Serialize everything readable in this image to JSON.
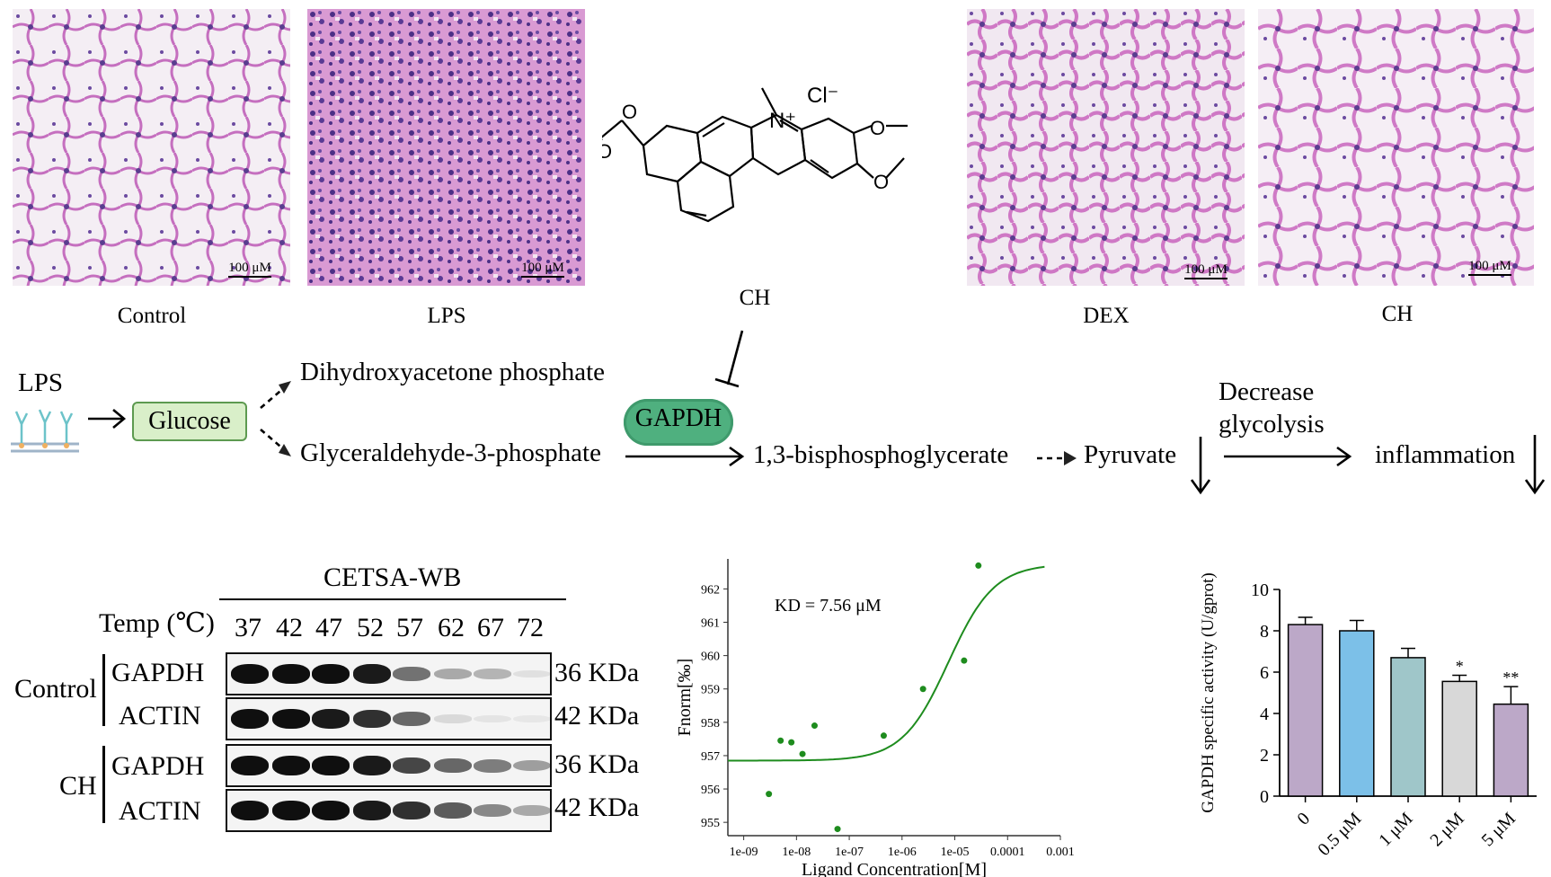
{
  "histology": {
    "scale_label": "100 μM",
    "panels": [
      {
        "caption": "Control"
      },
      {
        "caption": "LPS"
      },
      {
        "caption": "DEX"
      },
      {
        "caption": "CH"
      }
    ]
  },
  "structure": {
    "caption": "CH",
    "atoms": {
      "n_plus": "N⁺",
      "cl": "Cl⁻",
      "o1": "O",
      "o2": "O",
      "o3": "O",
      "o4": "O"
    }
  },
  "pathway": {
    "lps": "LPS",
    "glucose": "Glucose",
    "dhap": "Dihydroxyacetone phosphate",
    "g3p": "Glyceraldehyde-3-phosphate",
    "gapdh": "GAPDH",
    "bpg": "1,3-bisphosphoglycerate",
    "pyruvate": "Pyruvate",
    "decrease_line1": "Decrease",
    "decrease_line2": "glycolysis",
    "inflammation": "inflammation"
  },
  "cetsa": {
    "title": "CETSA-WB",
    "temp_label": "Temp (℃)",
    "temps": [
      "37",
      "42",
      "47",
      "52",
      "57",
      "62",
      "67",
      "72"
    ],
    "groups": [
      {
        "name": "Control",
        "rows": [
          {
            "protein": "GAPDH",
            "kda": "36 KDa",
            "intensity": [
              1.0,
              1.0,
              1.0,
              0.95,
              0.55,
              0.3,
              0.25,
              0.05
            ]
          },
          {
            "protein": "ACTIN",
            "kda": "42 KDa",
            "intensity": [
              1.0,
              1.0,
              0.95,
              0.85,
              0.6,
              0.08,
              0.03,
              0.02
            ]
          }
        ]
      },
      {
        "name": "CH",
        "rows": [
          {
            "protein": "GAPDH",
            "kda": "36 KDa",
            "intensity": [
              1.0,
              1.0,
              1.0,
              0.95,
              0.75,
              0.6,
              0.5,
              0.35
            ]
          },
          {
            "protein": "ACTIN",
            "kda": "42 KDa",
            "intensity": [
              1.0,
              1.0,
              1.0,
              0.95,
              0.85,
              0.65,
              0.45,
              0.3
            ]
          }
        ]
      }
    ]
  },
  "chart_data": [
    {
      "type": "scatter",
      "annotation": "KD = 7.56 μM",
      "xlabel": "Ligand Concentration[M]",
      "ylabel": "Fnorm[‰]",
      "x_scale": "log",
      "x_ticks": [
        "1e-09",
        "1e-08",
        "1e-07",
        "1e-06",
        "1e-05",
        "0.0001",
        "0.001"
      ],
      "y_ticks": [
        955,
        956,
        957,
        958,
        959,
        960,
        961,
        962
      ],
      "ylim": [
        954.6,
        962.9
      ],
      "points": [
        {
          "x": 3e-09,
          "y": 955.85
        },
        {
          "x": 5e-09,
          "y": 957.45
        },
        {
          "x": 8e-09,
          "y": 957.4
        },
        {
          "x": 1.3e-08,
          "y": 957.05
        },
        {
          "x": 2.2e-08,
          "y": 957.9
        },
        {
          "x": 6e-08,
          "y": 954.8
        },
        {
          "x": 4.5e-07,
          "y": 957.6
        },
        {
          "x": 2.5e-06,
          "y": 959.0
        },
        {
          "x": 1.5e-05,
          "y": 959.85
        },
        {
          "x": 2.8e-05,
          "y": 962.7
        }
      ],
      "fit": {
        "bottom": 956.85,
        "top": 962.75,
        "kd": 7.56e-06
      },
      "color": "#1e8c1e"
    },
    {
      "type": "bar",
      "ylabel": "GAPDH specific activity (U/gprot)",
      "categories": [
        "0",
        "0.5 μM",
        "1 μM",
        "2 μM",
        "5 μM"
      ],
      "values": [
        8.3,
        8.0,
        6.7,
        5.55,
        4.45
      ],
      "errors": [
        0.35,
        0.5,
        0.45,
        0.3,
        0.85
      ],
      "significance": [
        "",
        "",
        "",
        "*",
        "**"
      ],
      "colors": [
        "#bca8c8",
        "#7cc0e8",
        "#9fc6c9",
        "#d8d8d8",
        "#bca8c8"
      ],
      "ylim": [
        0,
        10
      ],
      "y_ticks": [
        0,
        2,
        4,
        6,
        8,
        10
      ]
    }
  ]
}
